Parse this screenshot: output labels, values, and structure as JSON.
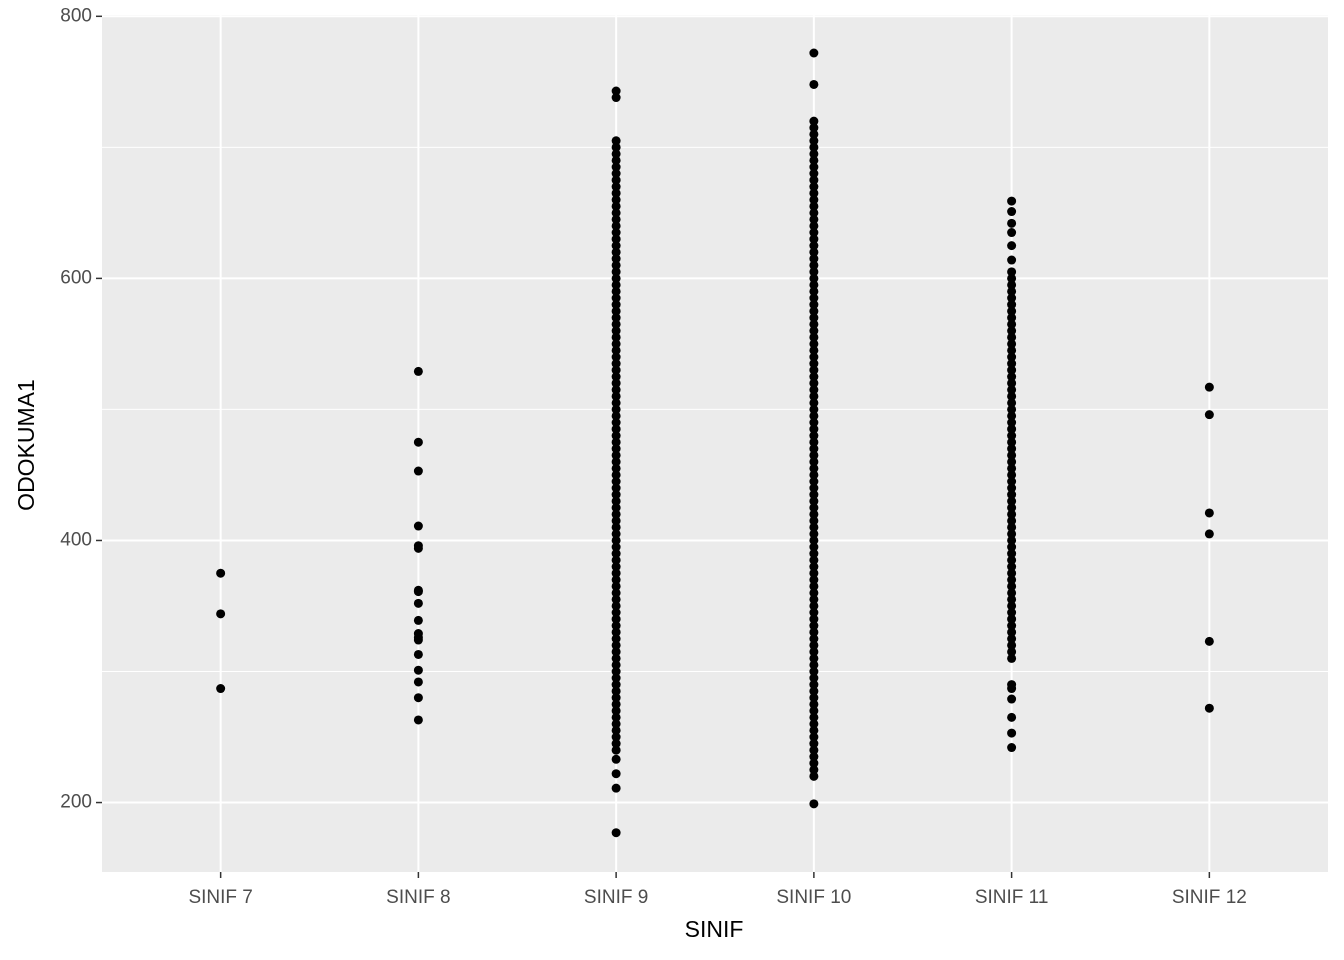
{
  "chart_data": {
    "type": "strip",
    "x_label": "SINIF",
    "y_label": "ODOKUMA1",
    "categories": [
      "SINIF 7",
      "SINIF 8",
      "SINIF 9",
      "SINIF 10",
      "SINIF 11",
      "SINIF 12"
    ],
    "values": [
      [
        375,
        344,
        287
      ],
      [
        529,
        475,
        453,
        411,
        396,
        394,
        362,
        361,
        352,
        339,
        329,
        326,
        324,
        313,
        301,
        292,
        280,
        263
      ],
      [
        743,
        738,
        705,
        700,
        695,
        690,
        685,
        680,
        675,
        670,
        665,
        660,
        655,
        650,
        645,
        640,
        635,
        630,
        625,
        620,
        615,
        610,
        605,
        600,
        595,
        590,
        585,
        580,
        575,
        570,
        565,
        560,
        555,
        550,
        545,
        540,
        535,
        530,
        525,
        520,
        515,
        510,
        505,
        500,
        495,
        490,
        485,
        480,
        475,
        470,
        465,
        460,
        455,
        450,
        445,
        440,
        435,
        430,
        425,
        420,
        415,
        410,
        405,
        400,
        395,
        390,
        385,
        380,
        375,
        370,
        365,
        360,
        355,
        350,
        345,
        340,
        335,
        330,
        325,
        320,
        315,
        310,
        305,
        300,
        295,
        290,
        285,
        280,
        275,
        270,
        265,
        260,
        255,
        250,
        245,
        240,
        233,
        222,
        211,
        177
      ],
      [
        772,
        748,
        720,
        715,
        710,
        705,
        700,
        695,
        690,
        685,
        680,
        675,
        670,
        665,
        660,
        655,
        650,
        645,
        640,
        635,
        630,
        625,
        620,
        615,
        610,
        605,
        600,
        595,
        590,
        585,
        580,
        575,
        570,
        565,
        560,
        555,
        550,
        545,
        540,
        535,
        530,
        525,
        520,
        515,
        510,
        505,
        500,
        495,
        490,
        485,
        480,
        475,
        470,
        465,
        460,
        455,
        450,
        445,
        440,
        435,
        430,
        425,
        420,
        415,
        410,
        405,
        400,
        395,
        390,
        385,
        380,
        375,
        370,
        365,
        360,
        355,
        350,
        345,
        340,
        335,
        330,
        325,
        320,
        315,
        310,
        305,
        300,
        295,
        290,
        285,
        280,
        275,
        270,
        265,
        260,
        255,
        250,
        245,
        240,
        235,
        230,
        225,
        220,
        199
      ],
      [
        659,
        651,
        642,
        635,
        625,
        614,
        605,
        600,
        595,
        590,
        585,
        580,
        575,
        570,
        565,
        560,
        555,
        550,
        545,
        540,
        535,
        530,
        525,
        520,
        515,
        510,
        505,
        500,
        495,
        490,
        485,
        480,
        475,
        470,
        465,
        460,
        455,
        450,
        445,
        440,
        435,
        430,
        425,
        420,
        415,
        410,
        405,
        400,
        395,
        390,
        385,
        380,
        375,
        370,
        365,
        360,
        355,
        350,
        345,
        340,
        335,
        330,
        325,
        320,
        315,
        310,
        290,
        287,
        279,
        265,
        253,
        242
      ],
      [
        517,
        496,
        421,
        405,
        323,
        272
      ]
    ],
    "color": "#000000",
    "ylim": [
      147,
      801
    ],
    "yticks": [
      200,
      400,
      600,
      800
    ],
    "minor_yticks": [
      300,
      500,
      700
    ],
    "grid": true
  }
}
